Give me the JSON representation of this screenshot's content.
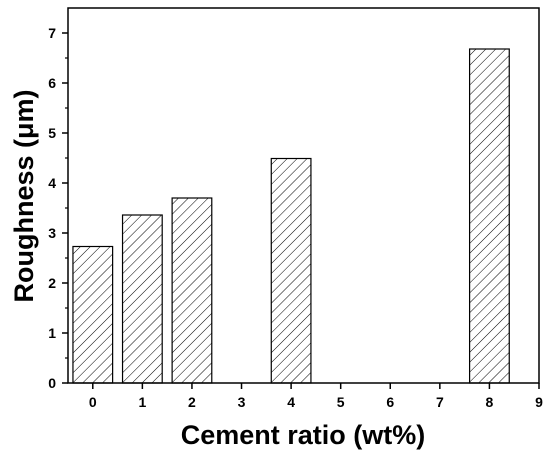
{
  "chart_data": {
    "type": "bar",
    "xlabel": "Cement ratio (wt%)",
    "ylabel": "Roughness (μm)",
    "x": [
      0,
      1,
      2,
      4,
      8
    ],
    "values": [
      2.73,
      3.36,
      3.7,
      4.49,
      6.68
    ],
    "xlim": [
      -0.5,
      9
    ],
    "ylim": [
      0,
      7.5
    ],
    "xticks": [
      0,
      1,
      2,
      3,
      4,
      5,
      6,
      7,
      8,
      9
    ],
    "yticks": [
      0,
      1,
      2,
      3,
      4,
      5,
      6,
      7
    ],
    "bar_width": 0.8,
    "bar_fill": "hatched diagonal",
    "bar_color": "#000000",
    "grid": false,
    "legend": "none"
  }
}
